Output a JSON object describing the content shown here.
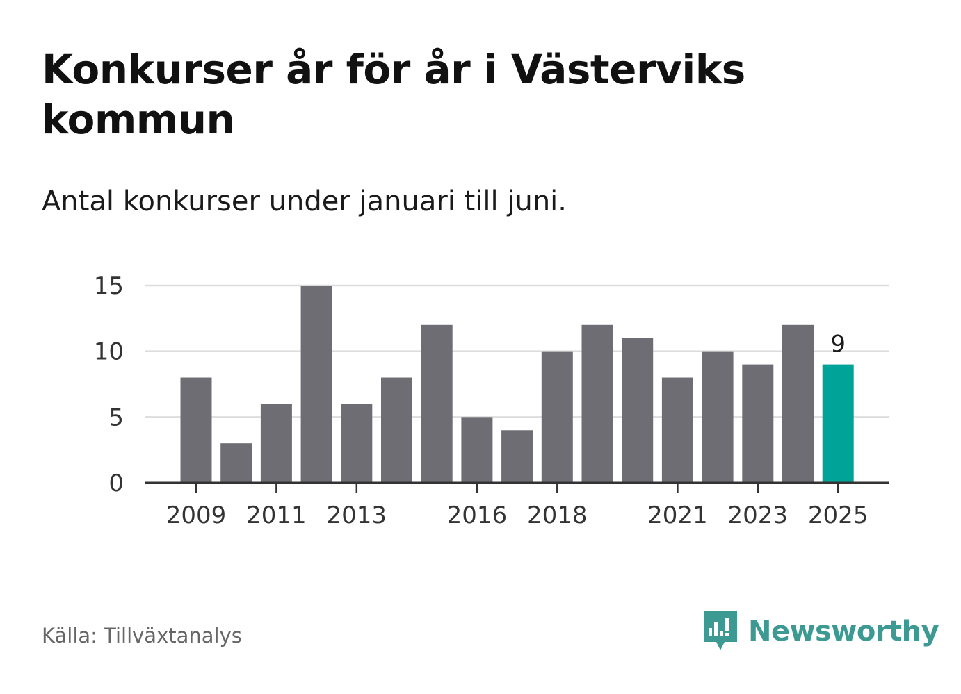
{
  "header": {
    "title": "Konkurser år för år i Västerviks kommun",
    "subtitle": "Antal konkurser under januari till juni."
  },
  "footer": {
    "source": "Källa: Tillväxtanalys",
    "brand": "Newsworthy"
  },
  "colors": {
    "bar": "#6d6d73",
    "highlight": "#00a397",
    "grid": "#dddddd",
    "axis": "#333333",
    "brand": "#3d9a93"
  },
  "chart_data": {
    "type": "bar",
    "title": "Konkurser år för år i Västerviks kommun",
    "subtitle": "Antal konkurser under januari till juni.",
    "categories": [
      "2009",
      "2010",
      "2011",
      "2012",
      "2013",
      "2014",
      "2015",
      "2016",
      "2017",
      "2018",
      "2019",
      "2020",
      "2021",
      "2022",
      "2023",
      "2024",
      "2025"
    ],
    "values": [
      8,
      3,
      6,
      15,
      6,
      8,
      12,
      5,
      4,
      10,
      12,
      11,
      8,
      10,
      9,
      12,
      9
    ],
    "xlabel": "",
    "ylabel": "",
    "ylim": [
      0,
      15
    ],
    "yticks": [
      0,
      5,
      10,
      15
    ],
    "xticks": [
      "2009",
      "2011",
      "2013",
      "2016",
      "2018",
      "2021",
      "2023",
      "2025"
    ],
    "highlight": {
      "category": "2025",
      "label": "9"
    },
    "grid": true,
    "legend": "none"
  }
}
